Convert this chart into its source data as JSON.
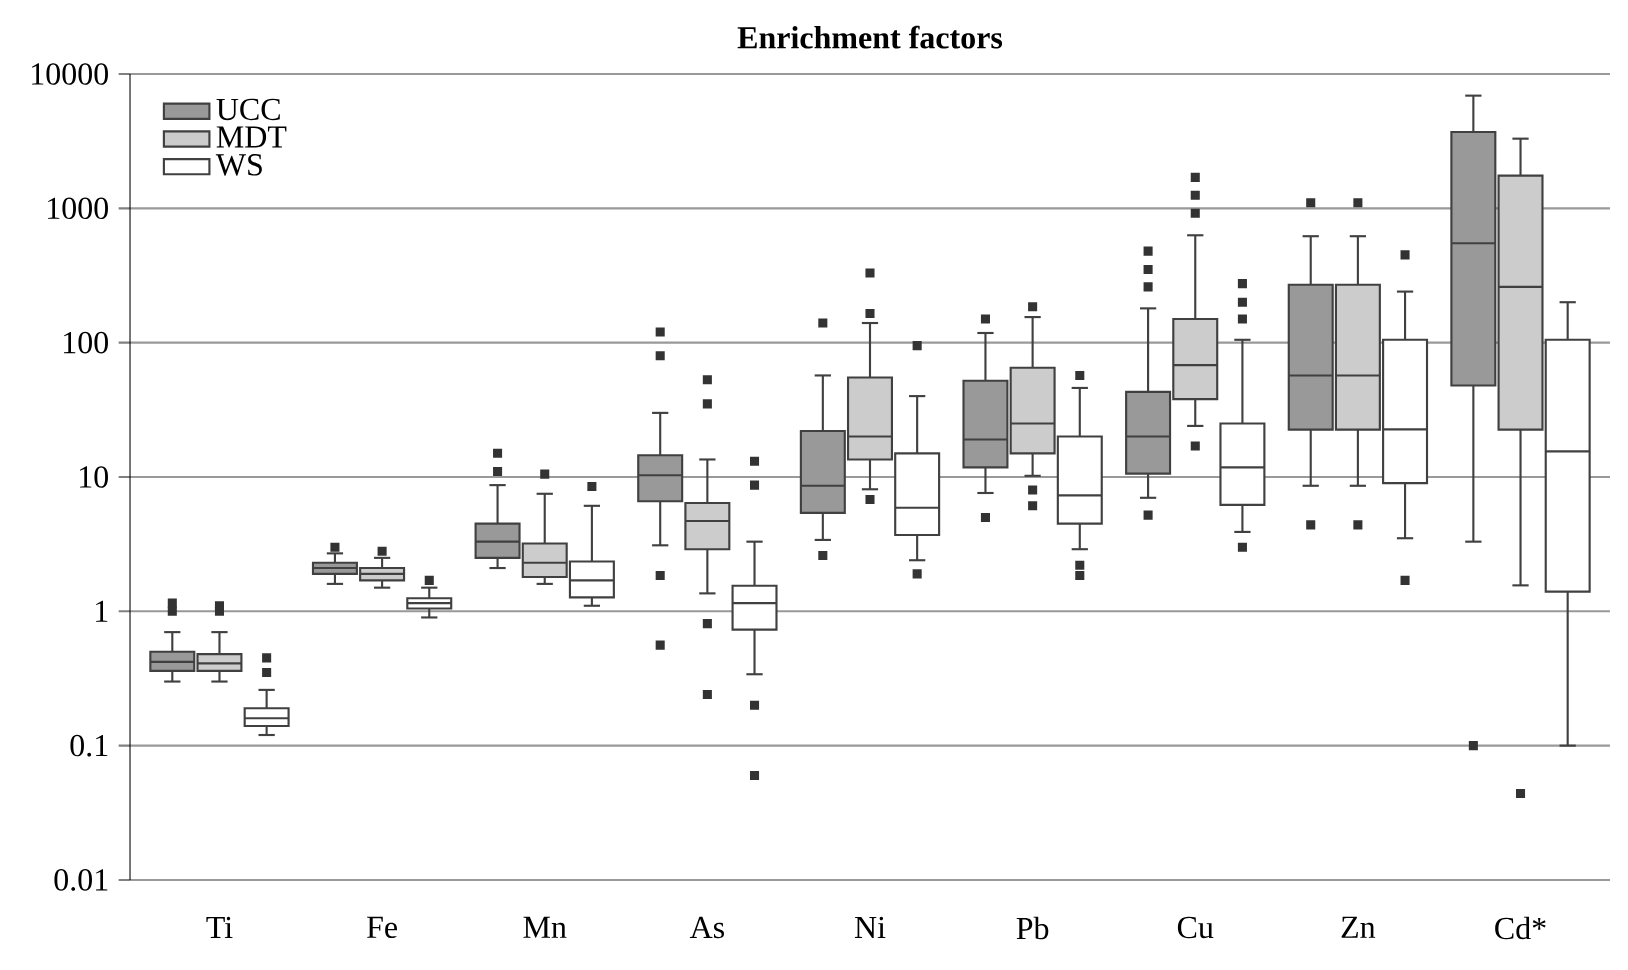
{
  "chart_data": {
    "type": "box",
    "title": "**Enrichment factors**",
    "categories": [
      "Ti",
      "Fe",
      "Mn",
      "As",
      "Ni",
      "Pb",
      "Cu",
      "Zn",
      "Cd*"
    ],
    "log": true,
    "ylim": [
      0.01,
      10000
    ],
    "yticks": [
      0.01,
      0.1,
      1,
      10,
      100,
      1000,
      10000
    ],
    "grid": "y",
    "legend": "top left",
    "marker": "square",
    "series": [
      {
        "name": "UCC",
        "color": "#999999",
        "boxes": [
          {
            "low": 0.3,
            "q1": 0.36,
            "median": 0.42,
            "q3": 0.5,
            "high": 0.7,
            "outliers": [
              1.0,
              1.15
            ]
          },
          {
            "low": 1.6,
            "q1": 1.9,
            "median": 2.1,
            "q3": 2.3,
            "high": 2.7,
            "outliers": [
              3.0
            ]
          },
          {
            "low": 2.1,
            "q1": 2.5,
            "median": 3.3,
            "q3": 4.5,
            "high": 8.7,
            "outliers": [
              11,
              15
            ]
          },
          {
            "low": 3.1,
            "q1": 6.6,
            "median": 10.3,
            "q3": 14.5,
            "high": 30,
            "outliers": [
              120,
              80,
              1.85,
              0.56
            ]
          },
          {
            "low": 3.4,
            "q1": 5.4,
            "median": 8.6,
            "q3": 22,
            "high": 57,
            "outliers": [
              140,
              2.6
            ]
          },
          {
            "low": 7.6,
            "q1": 11.8,
            "median": 19,
            "q3": 52,
            "high": 118,
            "outliers": [
              150,
              5
            ]
          },
          {
            "low": 7,
            "q1": 10.6,
            "median": 20,
            "q3": 43,
            "high": 180,
            "outliers": [
              480,
              350,
              260,
              5.2
            ]
          },
          {
            "low": 8.6,
            "q1": 22.5,
            "median": 57,
            "q3": 270,
            "high": 620,
            "outliers": [
              1100,
              4.4
            ]
          },
          {
            "low": 3.3,
            "q1": 48,
            "median": 550,
            "q3": 3700,
            "high": 6900,
            "outliers": [
              0.1
            ]
          }
        ]
      },
      {
        "name": "MDT",
        "color": "#cccccc",
        "boxes": [
          {
            "low": 0.3,
            "q1": 0.36,
            "median": 0.41,
            "q3": 0.48,
            "high": 0.7,
            "outliers": [
              1.0,
              1.1
            ]
          },
          {
            "low": 1.5,
            "q1": 1.7,
            "median": 1.9,
            "q3": 2.1,
            "high": 2.5,
            "outliers": [
              2.8
            ]
          },
          {
            "low": 1.6,
            "q1": 1.8,
            "median": 2.3,
            "q3": 3.2,
            "high": 7.5,
            "outliers": [
              10.5
            ]
          },
          {
            "low": 1.36,
            "q1": 2.9,
            "median": 4.7,
            "q3": 6.4,
            "high": 13.5,
            "outliers": [
              53,
              35,
              0.81,
              0.24
            ]
          },
          {
            "low": 8.1,
            "q1": 13.5,
            "median": 20,
            "q3": 55,
            "high": 140,
            "outliers": [
              330,
              165,
              6.8
            ]
          },
          {
            "low": 10.2,
            "q1": 15,
            "median": 25,
            "q3": 65,
            "high": 155,
            "outliers": [
              185,
              8,
              6.1
            ]
          },
          {
            "low": 24,
            "q1": 38,
            "median": 68,
            "q3": 150,
            "high": 630,
            "outliers": [
              1700,
              1250,
              920,
              17
            ]
          },
          {
            "low": 8.6,
            "q1": 22.5,
            "median": 57,
            "q3": 270,
            "high": 620,
            "outliers": [
              1100,
              4.4
            ]
          },
          {
            "low": 1.56,
            "q1": 22.5,
            "median": 260,
            "q3": 1750,
            "high": 3300,
            "outliers": [
              0.044
            ]
          }
        ]
      },
      {
        "name": "WS",
        "color": "#ffffff",
        "boxes": [
          {
            "low": 0.12,
            "q1": 0.14,
            "median": 0.16,
            "q3": 0.19,
            "high": 0.26,
            "outliers": [
              0.35,
              0.45
            ]
          },
          {
            "low": 0.9,
            "q1": 1.05,
            "median": 1.15,
            "q3": 1.25,
            "high": 1.5,
            "outliers": [
              1.7
            ]
          },
          {
            "low": 1.1,
            "q1": 1.27,
            "median": 1.7,
            "q3": 2.35,
            "high": 6.1,
            "outliers": [
              8.5
            ]
          },
          {
            "low": 0.34,
            "q1": 0.73,
            "median": 1.15,
            "q3": 1.55,
            "high": 3.3,
            "outliers": [
              13.1,
              8.7,
              0.2,
              0.06
            ]
          },
          {
            "low": 2.4,
            "q1": 3.7,
            "median": 5.9,
            "q3": 15,
            "high": 40,
            "outliers": [
              95,
              1.9
            ]
          },
          {
            "low": 2.9,
            "q1": 4.5,
            "median": 7.3,
            "q3": 20,
            "high": 46,
            "outliers": [
              57,
              2.2,
              1.85
            ]
          },
          {
            "low": 3.9,
            "q1": 6.2,
            "median": 11.8,
            "q3": 25,
            "high": 105,
            "outliers": [
              275,
              200,
              150,
              3.0
            ]
          },
          {
            "low": 3.5,
            "q1": 9,
            "median": 22.6,
            "q3": 105,
            "high": 240,
            "outliers": [
              450,
              1.7
            ]
          },
          {
            "low": 0.1,
            "q1": 1.4,
            "median": 15.5,
            "q3": 105,
            "high": 200
          }
        ]
      }
    ]
  }
}
